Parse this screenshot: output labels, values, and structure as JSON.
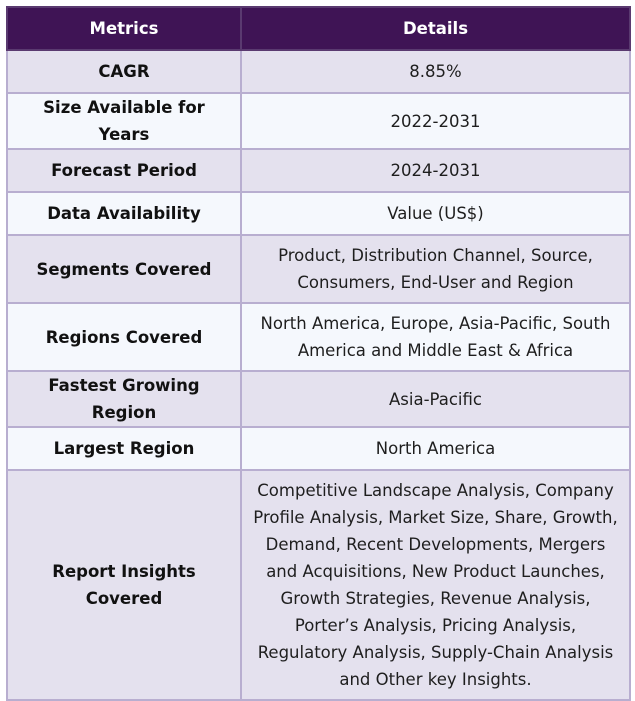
{
  "table": {
    "headers": [
      "Metrics",
      "Details"
    ],
    "rows": [
      {
        "metric": "CAGR",
        "details": "8.85%"
      },
      {
        "metric": "Size Available for Years",
        "details": "2022-2031"
      },
      {
        "metric": "Forecast Period",
        "details": "2024-2031"
      },
      {
        "metric": "Data Availability",
        "details": "Value (US$)"
      },
      {
        "metric": "Segments Covered",
        "details": "Product, Distribution Channel, Source, Consumers, End-User and Region"
      },
      {
        "metric": "Regions Covered",
        "details": "North America, Europe, Asia-Pacific, South America and Middle East & Africa"
      },
      {
        "metric": "Fastest Growing Region",
        "details": "Asia-Pacific"
      },
      {
        "metric": "Largest Region",
        "details": "North America"
      },
      {
        "metric": "Report Insights Covered",
        "details": "Competitive Landscape Analysis, Company Profile Analysis, Market Size, Share, Growth, Demand, Recent Developments, Mergers and Acquisitions, New Product Launches, Growth Strategies, Revenue Analysis, Porter’s Analysis, Pricing Analysis, Regulatory Analysis, Supply-Chain Analysis and Other key Insights."
      }
    ]
  },
  "colors": {
    "header_bg": "#3f1455",
    "row_odd_bg": "#e4e1ee",
    "row_even_bg": "#f5f8fd",
    "border": "#b8aed0"
  }
}
